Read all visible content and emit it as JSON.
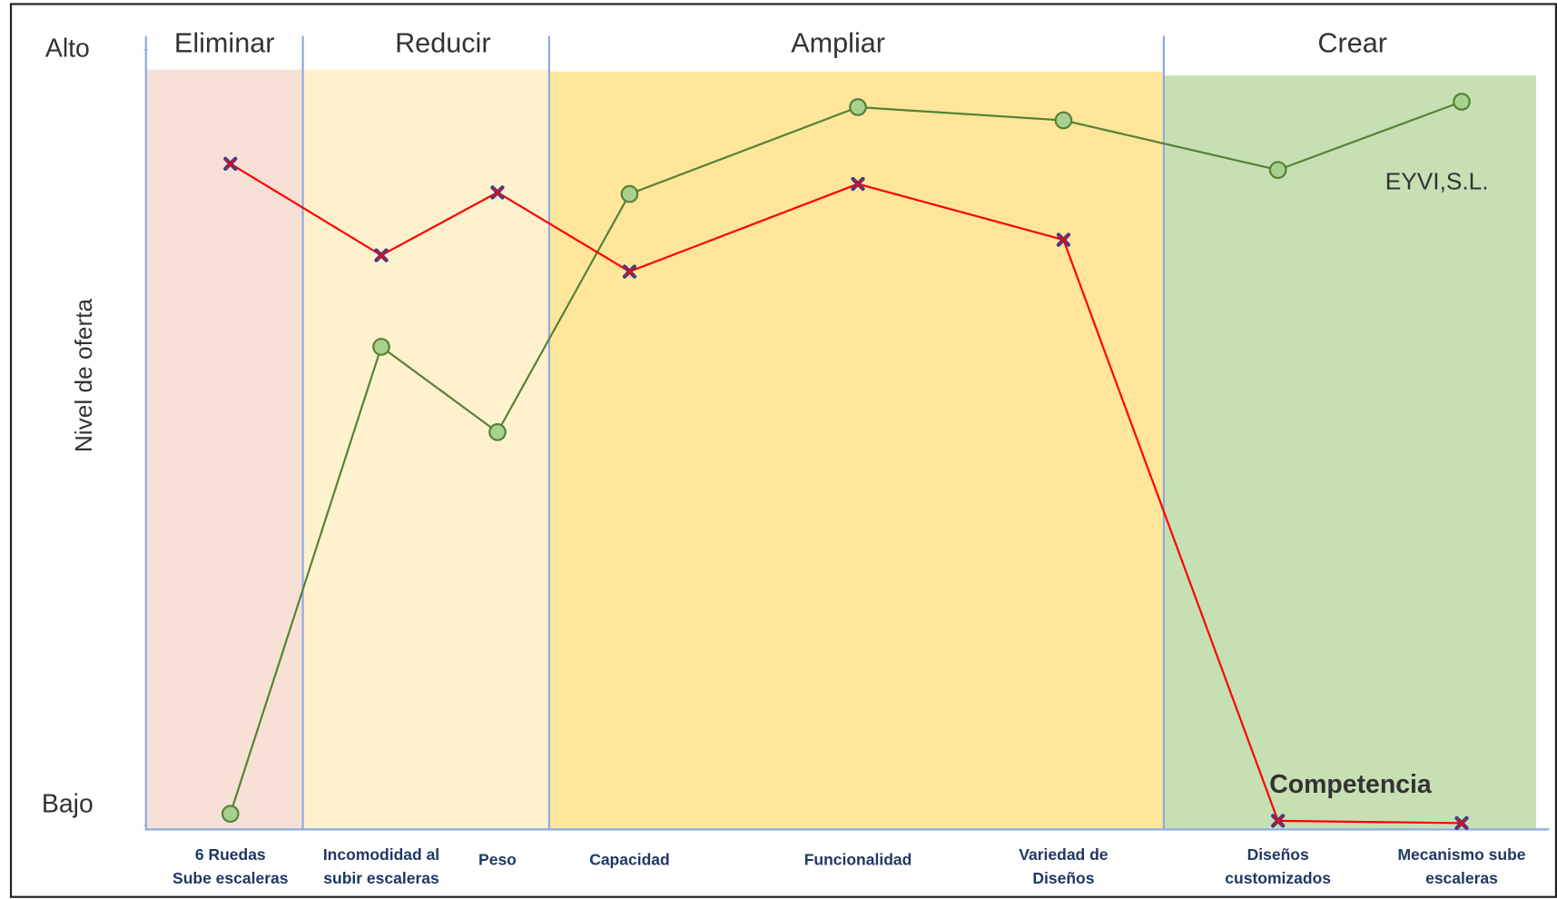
{
  "chart_data": {
    "type": "line",
    "y_label": "Nivel de oferta",
    "groups": [
      {
        "name": "Eliminar",
        "color": "#f8e0d6"
      },
      {
        "name": "Reducir",
        "color": "#fff1cd"
      },
      {
        "name": "Ampliar",
        "color": "#ffe69b"
      },
      {
        "name": "Crear",
        "color": "#c6e0b4"
      }
    ],
    "categories": [
      "6 Ruedas\nSube escaleras",
      "Incomodidad al\nsubir escaleras",
      "Peso",
      "Capacidad",
      "Funcionalidad",
      "Variedad de\nDiseños",
      "Diseños\ncustomizados",
      "Mecanismo sube\nescaleras"
    ],
    "ylim": [
      0,
      10
    ],
    "yticks": [
      {
        "value": 10,
        "label": "Alto"
      },
      {
        "value": 0,
        "label": "Bajo"
      }
    ],
    "series": [
      {
        "name": "EYVI,S.L.",
        "color": "#548235",
        "values": [
          0.15,
          6.17,
          5.07,
          8.14,
          9.26,
          9.09,
          8.45,
          9.33
        ]
      },
      {
        "name": "Competencia",
        "color": "#ff0000",
        "values": [
          8.53,
          7.35,
          8.16,
          7.14,
          8.27,
          7.55,
          0.06,
          0.03
        ]
      }
    ]
  }
}
